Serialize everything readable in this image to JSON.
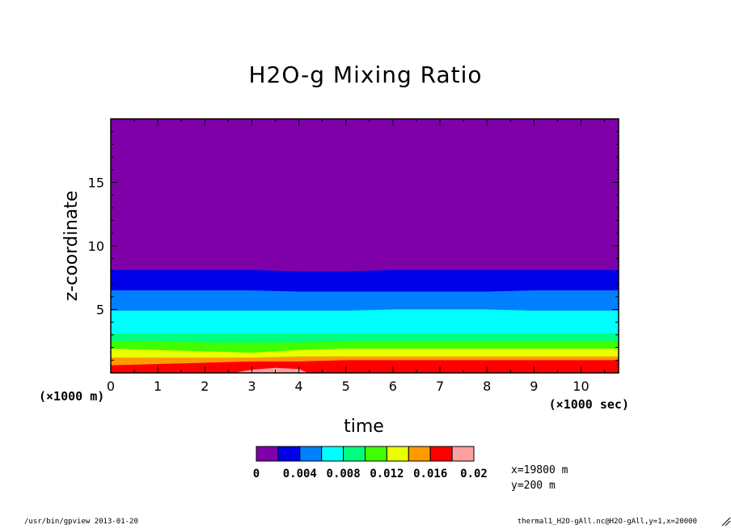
{
  "chart_data": {
    "type": "heatmap",
    "title": "H2O-g Mixing Ratio",
    "xlabel": "time",
    "ylabel": "z-coordinate",
    "x_unit_label": "(×1000 sec)",
    "y_unit_label": "(×1000 m)",
    "xlim": [
      0,
      10.8
    ],
    "ylim": [
      0,
      20
    ],
    "x_ticks": [
      0,
      1,
      2,
      3,
      4,
      5,
      6,
      7,
      8,
      9,
      10
    ],
    "y_ticks": [
      5,
      10,
      15
    ],
    "levels": [
      0,
      0.002,
      0.004,
      0.006,
      0.008,
      0.01,
      0.012,
      0.014,
      0.016,
      0.018,
      0.02
    ],
    "colorbar_tick_labels": [
      "0",
      "0.004",
      "0.008",
      "0.012",
      "0.016",
      "0.02"
    ],
    "colors": [
      "#7f00a8",
      "#0000e8",
      "#0080ff",
      "#00ffff",
      "#00ff80",
      "#40ff00",
      "#e8ff00",
      "#ff9a00",
      "#ff0000",
      "#ffa0a0"
    ],
    "contour_times": [
      0,
      1,
      2,
      3,
      4,
      5,
      6,
      7,
      8,
      9,
      10,
      10.8
    ],
    "contour_boundaries_km": [
      {
        "level": 0.002,
        "z": [
          8.1,
          8.1,
          8.1,
          8.1,
          8.0,
          8.0,
          8.1,
          8.1,
          8.1,
          8.1,
          8.1,
          8.1
        ]
      },
      {
        "level": 0.004,
        "z": [
          6.5,
          6.5,
          6.5,
          6.5,
          6.4,
          6.4,
          6.4,
          6.4,
          6.4,
          6.5,
          6.5,
          6.5
        ]
      },
      {
        "level": 0.006,
        "z": [
          4.9,
          4.9,
          4.9,
          4.9,
          4.9,
          4.9,
          5.0,
          5.0,
          5.0,
          4.9,
          4.9,
          4.9
        ]
      },
      {
        "level": 0.008,
        "z": [
          3.1,
          3.1,
          3.1,
          3.1,
          3.1,
          3.1,
          3.1,
          3.1,
          3.1,
          3.1,
          3.1,
          3.1
        ]
      },
      {
        "level": 0.01,
        "z": [
          2.5,
          2.5,
          2.4,
          2.4,
          2.4,
          2.5,
          2.5,
          2.5,
          2.5,
          2.5,
          2.5,
          2.5
        ]
      },
      {
        "level": 0.012,
        "z": [
          1.9,
          1.8,
          1.7,
          1.6,
          1.8,
          1.9,
          1.9,
          1.9,
          1.9,
          1.9,
          1.9,
          1.9
        ]
      },
      {
        "level": 0.014,
        "z": [
          1.2,
          1.2,
          1.2,
          1.2,
          1.3,
          1.3,
          1.3,
          1.3,
          1.3,
          1.3,
          1.3,
          1.3
        ]
      },
      {
        "level": 0.016,
        "z": [
          0.6,
          0.7,
          0.8,
          0.9,
          0.9,
          1.0,
          1.0,
          1.0,
          1.0,
          1.0,
          1.0,
          1.0
        ]
      },
      {
        "level": 0.018,
        "z": [
          0.0,
          0.0,
          0.0,
          0.0,
          0.0,
          0.0,
          0.0,
          0.0,
          0.0,
          0.0,
          0.0,
          0.0
        ]
      }
    ],
    "pink_patch": {
      "level": 0.018,
      "t": [
        2.6,
        3.0,
        3.5,
        4.0,
        4.2
      ],
      "z": [
        0.0,
        0.25,
        0.4,
        0.3,
        0.0
      ]
    }
  },
  "info": {
    "x_label": "x=19800 m",
    "y_label": "y=200 m"
  },
  "footer": {
    "left": "/usr/bin/gpview  2013-01-20",
    "right": "thermal1_H2O-gAll.nc@H2O-gAll,y=1,x=20000"
  }
}
